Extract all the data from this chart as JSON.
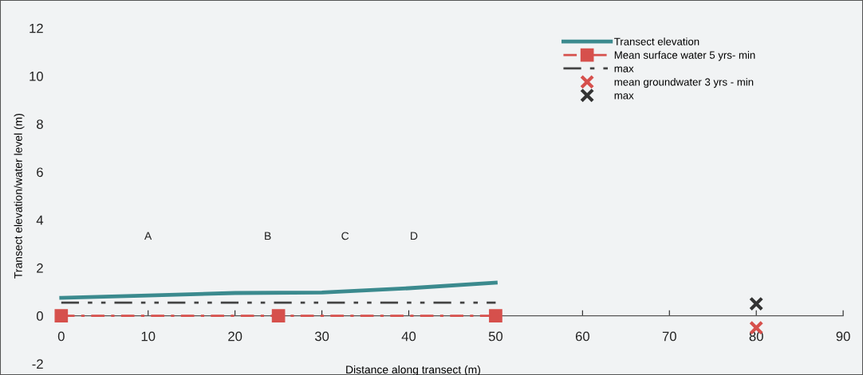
{
  "chart_data": {
    "type": "line",
    "xlabel": "Distance along transect (m)",
    "ylabel": "Transect elevation/water level (m)",
    "xlim": [
      0,
      90
    ],
    "xticks": [
      0,
      10,
      20,
      30,
      40,
      50,
      60,
      70,
      80,
      90
    ],
    "ylim": [
      -2,
      12
    ],
    "yticks": [
      -2,
      0,
      2,
      4,
      6,
      8,
      10,
      12
    ],
    "grid": false,
    "legend": "top right",
    "series": [
      {
        "name": "Transect elevation",
        "color": "#3b8a8e",
        "line_style": "solid",
        "marker": "none",
        "x": [
          0,
          10,
          20,
          30,
          40,
          50
        ],
        "values": [
          0.75,
          0.85,
          0.95,
          0.97,
          1.15,
          1.38
        ]
      },
      {
        "name": "Mean surface water 5 yrs- min",
        "color": "#d6504c",
        "line_style": "dashed",
        "marker": "square",
        "x": [
          0,
          25,
          50
        ],
        "values": [
          0,
          0,
          0
        ]
      },
      {
        "name": "max",
        "color": "#444444",
        "line_style": "dashdot",
        "marker": "none",
        "x": [
          0,
          50
        ],
        "values": [
          0.55,
          0.55
        ]
      },
      {
        "name": "mean groundwater 3 yrs - min",
        "type": "scatter",
        "color": "#d6504c",
        "marker": "cross",
        "x": [
          80
        ],
        "values": [
          -0.5
        ]
      },
      {
        "name": "max",
        "type": "scatter",
        "color": "#333333",
        "marker": "cross",
        "x": [
          80
        ],
        "values": [
          0.5
        ]
      }
    ],
    "annotations": [
      "A",
      "B",
      "C",
      "D"
    ]
  }
}
